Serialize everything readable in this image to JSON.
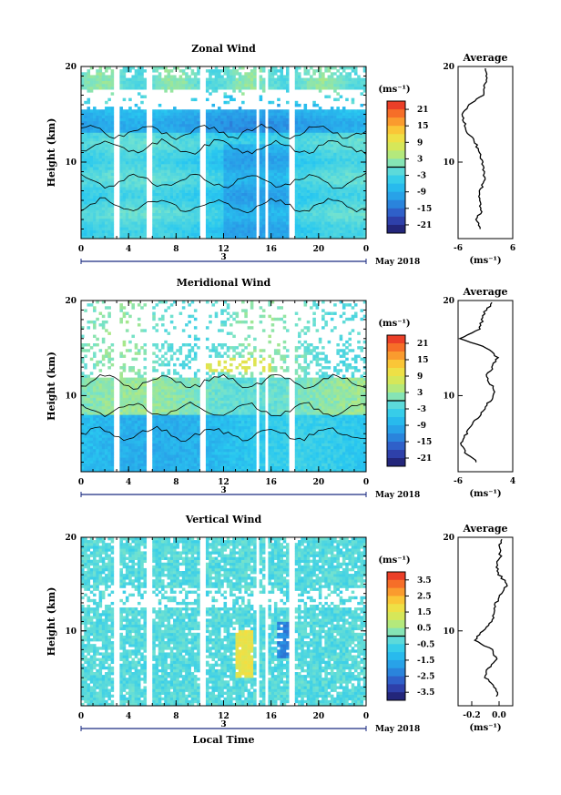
{
  "chart_data": [
    {
      "type": "heatmap",
      "title": "Zonal Wind",
      "ylabel": "Height (km)",
      "ylim": [
        2,
        20
      ],
      "yticks": [
        "10",
        "20"
      ],
      "xticks": [
        "0",
        "4",
        "8",
        "12",
        "16",
        "20",
        "0"
      ],
      "xlim": [
        0,
        24
      ],
      "date_tick": "3",
      "date_label": "May 2018",
      "colorbar": {
        "unit": "(ms⁻¹)",
        "ticks": [
          "21",
          "15",
          "9",
          "3",
          "-3",
          "-9",
          "-15",
          "-21"
        ],
        "range": [
          -24,
          24
        ]
      },
      "average": {
        "title": "Average",
        "unit": "(ms⁻¹)",
        "xticks": [
          "-6",
          "6"
        ],
        "xlim": [
          -6,
          6
        ],
        "yticks": [
          "10",
          "20"
        ]
      },
      "data_gaps_hours": [
        [
          2.8,
          3.2
        ],
        [
          5.6,
          5.9
        ],
        [
          10.1,
          10.4
        ],
        [
          14.8,
          15.1
        ],
        [
          15.6,
          15.8
        ],
        [
          17.6,
          17.9
        ]
      ],
      "profile": {
        "height_km": [
          3,
          4,
          5,
          6,
          7,
          8,
          9,
          10,
          11,
          12,
          13,
          14,
          15,
          16,
          17,
          18,
          19,
          20
        ],
        "value": [
          -1.2,
          -2.0,
          -0.8,
          -1.5,
          -1.2,
          -0.3,
          -0.4,
          -0.8,
          -1.3,
          -2.2,
          -3.8,
          -4.5,
          -5.4,
          -3.5,
          -0.5,
          -0.2,
          0.2,
          0.3
        ]
      }
    },
    {
      "type": "heatmap",
      "title": "Meridional Wind",
      "ylabel": "Height (km)",
      "ylim": [
        2,
        20
      ],
      "yticks": [
        "10",
        "20"
      ],
      "xticks": [
        "0",
        "4",
        "8",
        "12",
        "16",
        "20",
        "0"
      ],
      "xlim": [
        0,
        24
      ],
      "date_tick": "3",
      "date_label": "May 2018",
      "colorbar": {
        "unit": "(ms⁻¹)",
        "ticks": [
          "21",
          "15",
          "9",
          "3",
          "-3",
          "-9",
          "-15",
          "-21"
        ],
        "range": [
          -24,
          24
        ]
      },
      "average": {
        "title": "Average",
        "unit": "(ms⁻¹)",
        "xticks": [
          "-6",
          "4"
        ],
        "xlim": [
          -6,
          4
        ],
        "yticks": [
          "10",
          "20"
        ]
      },
      "data_gaps_hours": [
        [
          2.8,
          3.2
        ],
        [
          5.6,
          5.9
        ],
        [
          10.1,
          10.4
        ],
        [
          14.8,
          15.1
        ],
        [
          15.6,
          15.8
        ],
        [
          17.6,
          17.9
        ]
      ],
      "profile": {
        "height_km": [
          3,
          4,
          5,
          6,
          7,
          8,
          9,
          10,
          11,
          12,
          13,
          14,
          15,
          16,
          17,
          18,
          19,
          20
        ],
        "value": [
          -2.5,
          -4.8,
          -5.3,
          -4.5,
          -3.4,
          -1.8,
          -0.8,
          0.6,
          0.2,
          -0.8,
          0.3,
          1.2,
          -0.8,
          -5.6,
          -2.0,
          -1.6,
          -1.0,
          0.8
        ]
      }
    },
    {
      "type": "heatmap",
      "title": "Vertical Wind",
      "xlabel": "Local Time",
      "ylabel": "Height (km)",
      "ylim": [
        2,
        20
      ],
      "yticks": [
        "10",
        "20"
      ],
      "xticks": [
        "0",
        "4",
        "8",
        "12",
        "16",
        "20",
        "0"
      ],
      "xlim": [
        0,
        24
      ],
      "date_tick": "3",
      "date_label": "May 2018",
      "colorbar": {
        "unit": "(ms⁻¹)",
        "ticks": [
          "3.5",
          "2.5",
          "1.5",
          "0.5",
          "-0.5",
          "-1.5",
          "-2.5",
          "-3.5"
        ],
        "range": [
          -4,
          4
        ]
      },
      "average": {
        "title": "Average",
        "unit": "(ms⁻¹)",
        "xticks": [
          "-0.2",
          "0.0"
        ],
        "xlim": [
          -0.3,
          0.1
        ],
        "yticks": [
          "10",
          "20"
        ]
      },
      "data_gaps_hours": [
        [
          2.8,
          3.2
        ],
        [
          5.6,
          5.9
        ],
        [
          10.1,
          10.4
        ],
        [
          14.8,
          15.1
        ],
        [
          15.6,
          15.8
        ],
        [
          17.6,
          17.9
        ]
      ],
      "profile": {
        "height_km": [
          3,
          4,
          5,
          6,
          7,
          8,
          9,
          10,
          11,
          12,
          13,
          14,
          15,
          16,
          17,
          18,
          19,
          20
        ],
        "value": [
          -0.01,
          -0.03,
          -0.1,
          -0.08,
          -0.02,
          -0.05,
          -0.18,
          -0.12,
          -0.05,
          -0.04,
          -0.02,
          0.02,
          0.06,
          0.0,
          -0.02,
          0.01,
          0.0,
          0.02
        ]
      }
    }
  ]
}
